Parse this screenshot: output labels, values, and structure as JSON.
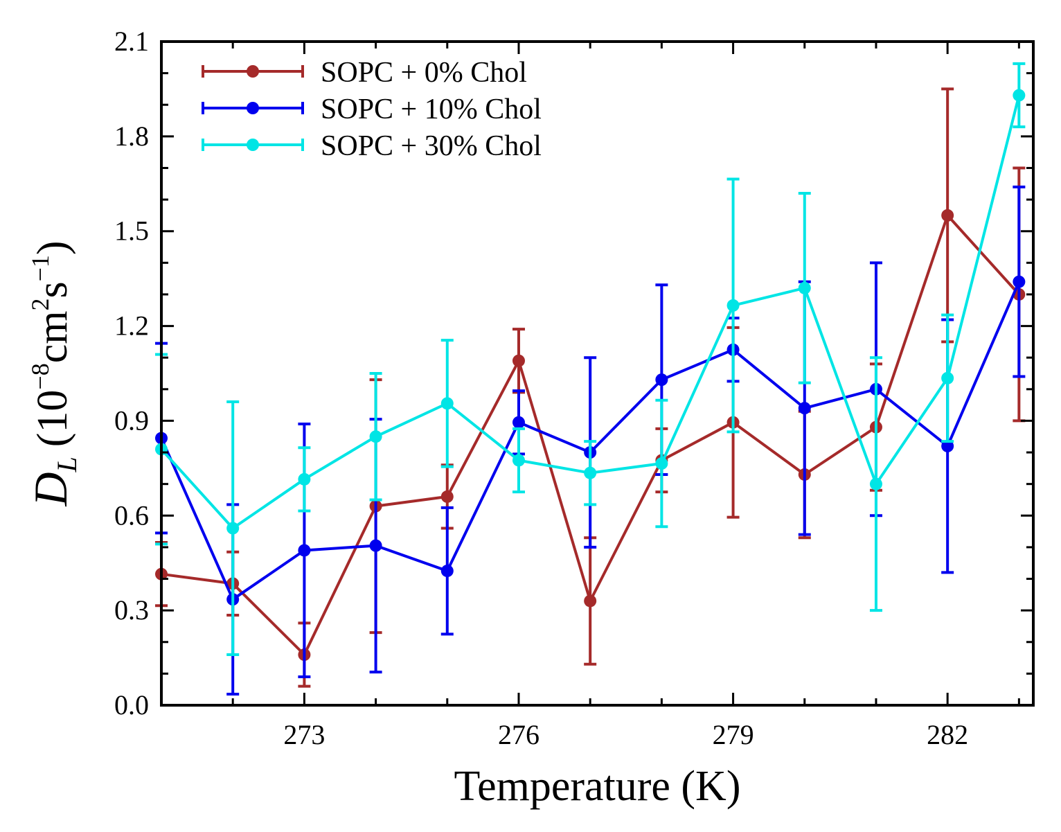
{
  "chart_data": {
    "type": "line",
    "xlabel": "Temperature (K)",
    "ylabel": {
      "symbol": "D",
      "subscript": "L",
      "unit_prefix": "(10",
      "exp1": "−8",
      "unit_mid": "cm",
      "exp2": "2",
      "unit_s": "s",
      "exp3": "−1",
      "unit_close": ")"
    },
    "xlim": [
      271,
      283.2
    ],
    "ylim": [
      0.0,
      2.1
    ],
    "xticks": [
      273,
      276,
      279,
      282
    ],
    "yticks": [
      0.0,
      0.3,
      0.6,
      0.9,
      1.2,
      1.5,
      1.8,
      2.1
    ],
    "ytick_labels": [
      "0.0",
      "0.3",
      "0.6",
      "0.9",
      "1.2",
      "1.5",
      "1.8",
      "2.1"
    ],
    "grid": false,
    "legend_position": "top-left",
    "x": [
      271,
      272,
      273,
      274,
      275,
      276,
      277,
      278,
      279,
      280,
      281,
      282,
      283
    ],
    "series": [
      {
        "name": "SOPC + 0% Chol",
        "color": "#a52a2a",
        "values": [
          0.415,
          0.385,
          0.16,
          0.63,
          0.66,
          1.09,
          0.33,
          0.775,
          0.895,
          0.73,
          0.88,
          1.55,
          1.3
        ],
        "errors": [
          0.1,
          0.1,
          0.1,
          0.4,
          0.1,
          0.1,
          0.2,
          0.1,
          0.3,
          0.2,
          0.2,
          0.4,
          0.4
        ]
      },
      {
        "name": "SOPC + 10% Chol",
        "color": "#0000ee",
        "values": [
          0.845,
          0.335,
          0.49,
          0.505,
          0.425,
          0.895,
          0.8,
          1.03,
          1.125,
          0.94,
          1.0,
          0.82,
          1.34
        ],
        "errors": [
          0.3,
          0.3,
          0.4,
          0.4,
          0.2,
          0.1,
          0.3,
          0.3,
          0.1,
          0.4,
          0.4,
          0.4,
          0.3
        ]
      },
      {
        "name": "SOPC + 30% Chol",
        "color": "#00e5e5",
        "values": [
          0.81,
          0.56,
          0.715,
          0.85,
          0.955,
          0.775,
          0.735,
          0.765,
          1.265,
          1.32,
          0.7,
          1.035,
          1.93
        ],
        "errors": [
          0.3,
          0.4,
          0.1,
          0.2,
          0.2,
          0.1,
          0.1,
          0.2,
          0.4,
          0.3,
          0.4,
          0.2,
          0.1
        ]
      }
    ]
  }
}
